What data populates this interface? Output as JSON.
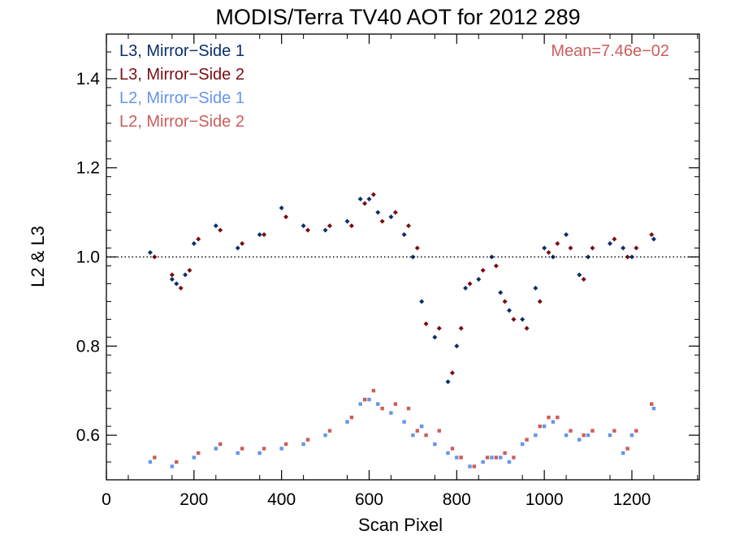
{
  "chart_data": {
    "type": "scatter",
    "title": "MODIS/Terra TV40 AOT for 2012 289",
    "xlabel": "Scan Pixel",
    "ylabel": "L2 & L3",
    "xlim": [
      0,
      1354
    ],
    "ylim": [
      0.5,
      1.5
    ],
    "x_ticks": [
      0,
      200,
      400,
      600,
      800,
      1000,
      1200
    ],
    "x_tick_labels": [
      "0",
      "200",
      "400",
      "600",
      "800",
      "1000",
      "1200"
    ],
    "y_ticks": [
      0.6,
      0.8,
      1.0,
      1.2,
      1.4
    ],
    "y_tick_labels": [
      "0.6",
      "0.8",
      "1.0",
      "1.2",
      "1.4"
    ],
    "reference_line": 1.0,
    "grid": false,
    "legend_position": "top-left",
    "annotation": {
      "text": "Mean=7.46e−02",
      "position": "top-right",
      "color": "#cd5c5c"
    },
    "series": [
      {
        "name": "L3, Mirror−Side 1",
        "color": "#0b2f6b",
        "x": [
          100,
          150,
          160,
          180,
          200,
          250,
          300,
          350,
          400,
          450,
          500,
          550,
          580,
          600,
          620,
          650,
          680,
          700,
          720,
          750,
          780,
          800,
          820,
          850,
          880,
          900,
          920,
          950,
          980,
          1000,
          1020,
          1050,
          1080,
          1100,
          1150,
          1180,
          1200,
          1250
        ],
        "y": [
          1.01,
          0.95,
          0.94,
          0.96,
          1.03,
          1.07,
          1.02,
          1.05,
          1.11,
          1.07,
          1.06,
          1.08,
          1.13,
          1.13,
          1.1,
          1.09,
          1.05,
          1.0,
          0.9,
          0.82,
          0.72,
          0.8,
          0.93,
          0.95,
          1.0,
          0.92,
          0.88,
          0.86,
          0.93,
          1.02,
          1.0,
          1.05,
          0.96,
          1.0,
          1.03,
          1.02,
          1.0,
          1.04
        ]
      },
      {
        "name": "L3, Mirror−Side 2",
        "color": "#7b0d14",
        "x": [
          110,
          150,
          170,
          190,
          210,
          260,
          310,
          360,
          410,
          460,
          510,
          560,
          590,
          610,
          630,
          660,
          690,
          710,
          730,
          760,
          790,
          810,
          830,
          860,
          890,
          910,
          930,
          960,
          990,
          1010,
          1030,
          1060,
          1090,
          1110,
          1160,
          1190,
          1210,
          1245
        ],
        "y": [
          1.0,
          0.96,
          0.93,
          0.97,
          1.04,
          1.06,
          1.03,
          1.05,
          1.09,
          1.06,
          1.07,
          1.07,
          1.12,
          1.14,
          1.08,
          1.1,
          1.07,
          1.02,
          0.85,
          0.84,
          0.74,
          0.84,
          0.94,
          0.97,
          0.98,
          0.9,
          0.86,
          0.84,
          0.9,
          1.01,
          1.03,
          1.02,
          0.95,
          1.02,
          1.04,
          1.0,
          1.02,
          1.05
        ]
      },
      {
        "name": "L2, Mirror−Side 1",
        "color": "#6495ed",
        "x": [
          100,
          150,
          200,
          250,
          300,
          350,
          400,
          450,
          500,
          550,
          580,
          600,
          620,
          650,
          680,
          700,
          720,
          750,
          780,
          800,
          830,
          860,
          880,
          900,
          920,
          950,
          980,
          1000,
          1020,
          1050,
          1080,
          1100,
          1150,
          1180,
          1200,
          1250
        ],
        "y": [
          0.54,
          0.53,
          0.55,
          0.57,
          0.56,
          0.56,
          0.57,
          0.58,
          0.6,
          0.63,
          0.67,
          0.68,
          0.67,
          0.65,
          0.63,
          0.6,
          0.62,
          0.58,
          0.56,
          0.55,
          0.53,
          0.54,
          0.55,
          0.55,
          0.54,
          0.58,
          0.6,
          0.62,
          0.63,
          0.6,
          0.59,
          0.6,
          0.6,
          0.56,
          0.6,
          0.66
        ]
      },
      {
        "name": "L2, Mirror−Side 2",
        "color": "#cd5c5c",
        "x": [
          110,
          160,
          210,
          260,
          310,
          360,
          410,
          460,
          510,
          560,
          590,
          610,
          630,
          660,
          690,
          710,
          730,
          760,
          790,
          810,
          840,
          870,
          890,
          910,
          930,
          960,
          990,
          1010,
          1030,
          1060,
          1090,
          1110,
          1160,
          1190,
          1210,
          1245
        ],
        "y": [
          0.55,
          0.54,
          0.56,
          0.58,
          0.57,
          0.57,
          0.58,
          0.59,
          0.61,
          0.64,
          0.68,
          0.7,
          0.66,
          0.67,
          0.66,
          0.61,
          0.6,
          0.61,
          0.57,
          0.55,
          0.53,
          0.55,
          0.55,
          0.56,
          0.55,
          0.59,
          0.62,
          0.64,
          0.64,
          0.61,
          0.6,
          0.61,
          0.61,
          0.57,
          0.61,
          0.67
        ]
      }
    ]
  }
}
